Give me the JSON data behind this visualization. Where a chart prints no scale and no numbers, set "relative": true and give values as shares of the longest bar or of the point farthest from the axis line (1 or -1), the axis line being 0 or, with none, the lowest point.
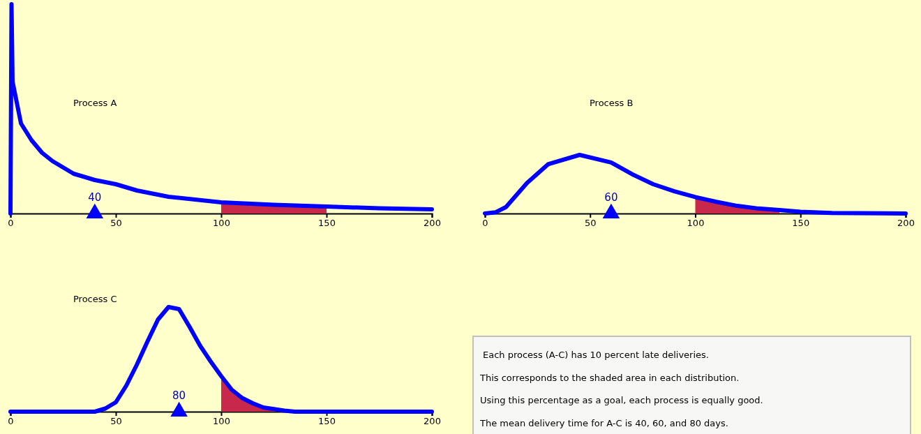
{
  "chart_data": [
    {
      "type": "line",
      "title": "Process A",
      "xlim": [
        0,
        200
      ],
      "xticks": [
        0,
        50,
        100,
        150,
        200
      ],
      "relative": true,
      "tick_labels": "x",
      "series": [
        {
          "type": "area",
          "color": "#c8284c",
          "x": [
            100,
            125,
            150
          ],
          "values": [
            0.053,
            0.042,
            0.033
          ]
        },
        {
          "type": "line",
          "color": "#0000ff",
          "x": [
            0,
            0.5,
            1,
            2,
            5,
            10,
            15,
            20,
            25,
            30,
            40,
            50,
            60,
            75,
            100,
            125,
            150,
            175,
            200
          ],
          "values": [
            0,
            1,
            0.63,
            0.58,
            0.43,
            0.35,
            0.29,
            0.25,
            0.22,
            0.19,
            0.16,
            0.14,
            0.11,
            0.08,
            0.053,
            0.042,
            0.033,
            0.025,
            0.02
          ]
        },
        {
          "type": "scatter",
          "color": "#0000ff",
          "marker": "triangle",
          "x": [
            40
          ],
          "values": [
            0
          ]
        }
      ],
      "annotations": [
        {
          "text": "40",
          "x": 40,
          "y": 0
        }
      ]
    },
    {
      "type": "line",
      "title": "Process B",
      "xlim": [
        0,
        200
      ],
      "xticks": [
        0,
        50,
        100,
        150,
        200
      ],
      "relative": true,
      "tick_labels": "x",
      "series": [
        {
          "type": "area",
          "color": "#c8284c",
          "x": [
            100,
            110,
            120,
            130,
            140
          ],
          "values": [
            0.28,
            0.2,
            0.13,
            0.085,
            0.06
          ]
        },
        {
          "type": "line",
          "color": "#0000ff",
          "x": [
            0,
            5,
            10,
            20,
            30,
            45,
            60,
            70,
            80,
            90,
            100,
            110,
            120,
            130,
            140,
            150,
            165,
            200
          ],
          "values": [
            0,
            0.02,
            0.11,
            0.52,
            0.84,
            1,
            0.87,
            0.67,
            0.5,
            0.38,
            0.28,
            0.2,
            0.13,
            0.085,
            0.06,
            0.03,
            0.01,
            0
          ]
        },
        {
          "type": "scatter",
          "color": "#0000ff",
          "marker": "triangle",
          "x": [
            60
          ],
          "values": [
            0
          ]
        }
      ],
      "annotations": [
        {
          "text": "60",
          "x": 60,
          "y": 0
        }
      ]
    },
    {
      "type": "line",
      "title": "Process C",
      "xlim": [
        0,
        200
      ],
      "xticks": [
        0,
        50,
        100,
        150,
        200
      ],
      "relative": true,
      "tick_labels": "x",
      "series": [
        {
          "type": "area",
          "color": "#c8284c",
          "x": [
            100,
            105,
            110,
            115,
            120,
            125
          ],
          "values": [
            0.34,
            0.21,
            0.13,
            0.08,
            0.04,
            0.02
          ]
        },
        {
          "type": "line",
          "color": "#0000ff",
          "x": [
            0,
            40,
            45,
            50,
            55,
            60,
            65,
            70,
            75,
            80,
            85,
            90,
            95,
            100,
            105,
            110,
            115,
            120,
            130,
            135,
            200
          ],
          "values": [
            0,
            0,
            0.03,
            0.09,
            0.25,
            0.45,
            0.67,
            0.88,
            1,
            0.98,
            0.81,
            0.63,
            0.48,
            0.34,
            0.21,
            0.13,
            0.08,
            0.04,
            0.01,
            0,
            0
          ]
        },
        {
          "type": "scatter",
          "color": "#0000ff",
          "marker": "triangle",
          "x": [
            80
          ],
          "values": [
            0
          ]
        }
      ],
      "annotations": [
        {
          "text": "80",
          "x": 80,
          "y": 0
        }
      ]
    },
    {
      "type": "other",
      "annotations": [
        "Each process (A-C) has 10 percent late deliveries.",
        "This corresponds to the shaded area in each distribution.",
        "Using this percentage as a goal, each process is equally good.",
        "The mean delivery time for A-C is 40, 60, and 80 days."
      ]
    }
  ]
}
